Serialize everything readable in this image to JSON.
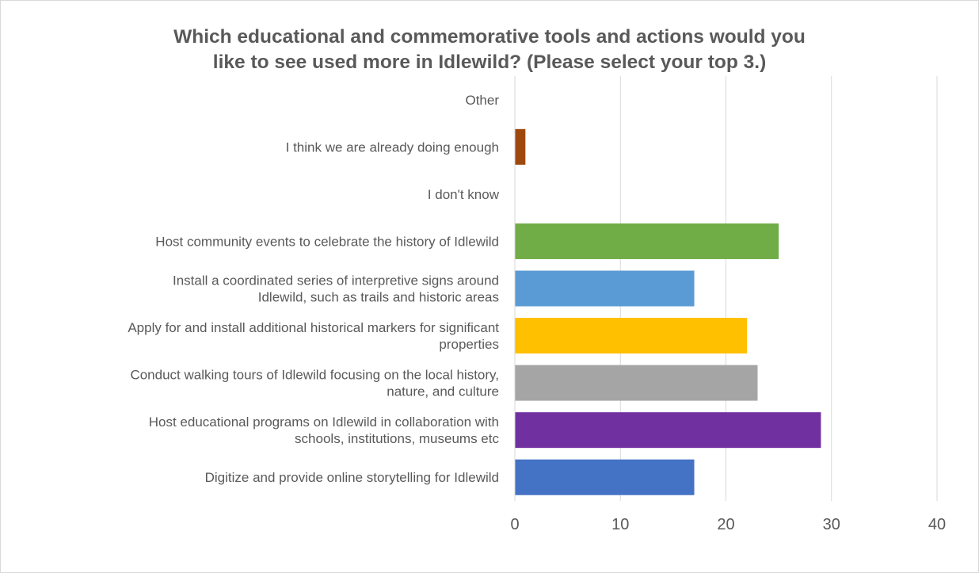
{
  "chart_data": {
    "type": "bar",
    "orientation": "horizontal",
    "title": [
      "Which educational and commemorative tools and actions would you",
      "like to see used more in Idlewild? (Please select your top 3.)"
    ],
    "xlabel": "",
    "ylabel": "",
    "xlim": [
      0,
      40
    ],
    "x_ticks": [
      0,
      10,
      20,
      30,
      40
    ],
    "grid": "vertical",
    "legend": "none",
    "categories": [
      [
        "Digitize and provide online storytelling for Idlewild"
      ],
      [
        "Host educational programs on Idlewild in collaboration with",
        "schools, institutions, museums etc"
      ],
      [
        "Conduct walking tours of Idlewild focusing on the local history,",
        "nature, and culture"
      ],
      [
        "Apply for and install additional historical markers for significant",
        "properties"
      ],
      [
        "Install a coordinated series of interpretive signs around",
        "Idlewild, such as trails and historic areas"
      ],
      [
        "Host community events to celebrate the history of Idlewild"
      ],
      [
        "I don't know"
      ],
      [
        "I think we are already doing enough"
      ],
      [
        "Other"
      ]
    ],
    "values": [
      17,
      29,
      23,
      22,
      17,
      25,
      0,
      1,
      0
    ],
    "colors": [
      "#4472c4",
      "#7030a0",
      "#a5a5a5",
      "#ffc000",
      "#5b9bd5",
      "#70ad47",
      "#ed7d31",
      "#9e480e",
      "#636363"
    ]
  }
}
